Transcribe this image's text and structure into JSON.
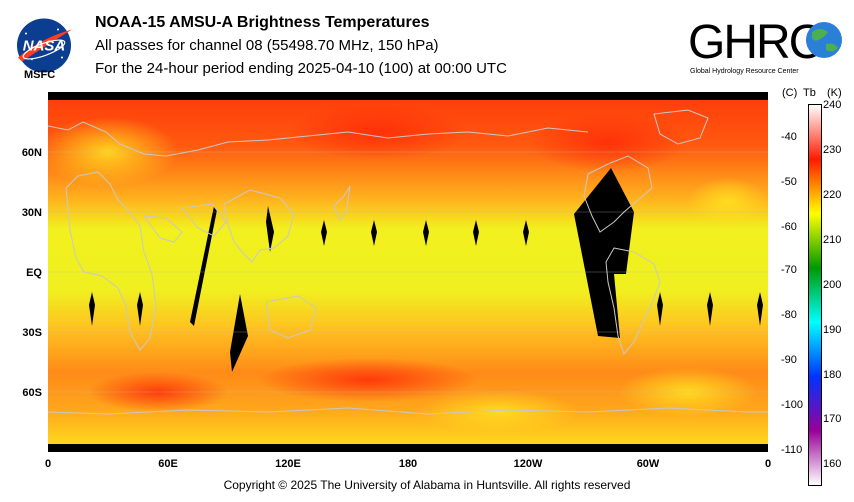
{
  "header": {
    "line1": "NOAA-15 AMSU-A Brightness Temperatures",
    "line2": "All passes for channel 08 (55498.70 MHz, 150 hPa)",
    "line3": "For the 24-hour period ending 2025-04-10 (100) at 00:00 UTC"
  },
  "logos": {
    "nasa_text": "NASA",
    "nasa_caption": "MSFC",
    "ghrc_text": "GHRC",
    "ghrc_caption": "Global Hydrology Resource Center"
  },
  "map": {
    "lat_labels": [
      "60N",
      "30N",
      "EQ",
      "30S",
      "60S"
    ],
    "lon_labels": [
      "0",
      "60E",
      "120E",
      "180",
      "120W",
      "60W",
      "0"
    ]
  },
  "colorbar": {
    "header_c": "(C)",
    "header_tb": "Tb",
    "header_k": "(K)",
    "celsius_ticks": [
      "-40",
      "-50",
      "-60",
      "-70",
      "-80",
      "-90",
      "-100",
      "-110"
    ],
    "kelvin_ticks": [
      "240",
      "230",
      "220",
      "210",
      "200",
      "190",
      "180",
      "170",
      "160"
    ],
    "colors": [
      "#ffffff",
      "#ff1a00",
      "#ffff00",
      "#009900",
      "#00ffff",
      "#0033ff",
      "#990099",
      "#ffffff"
    ]
  },
  "footer": {
    "copyright": "Copyright © 2025 The University of Alabama in Huntsville.  All rights reserved"
  }
}
